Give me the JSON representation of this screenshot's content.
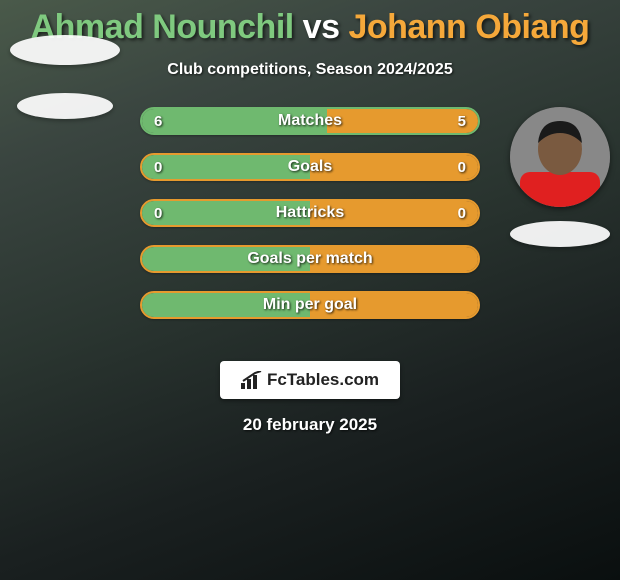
{
  "title": {
    "player1": "Ahmad Nounchil",
    "vs": " vs ",
    "player2": "Johann Obiang",
    "color1": "#7fc97f",
    "color_vs": "#ffffff",
    "color2": "#f5a83a",
    "fontsize": 34
  },
  "subtitle": "Club competitions, Season 2024/2025",
  "colors": {
    "left": "#6fb96f",
    "right": "#e69a2e",
    "bar_bg": "#3a3a3a",
    "text": "#ffffff"
  },
  "bars": [
    {
      "label": "Matches",
      "left": "6",
      "right": "5",
      "left_pct": 55,
      "right_pct": 45,
      "show_vals": true,
      "border": "#6fb96f"
    },
    {
      "label": "Goals",
      "left": "0",
      "right": "0",
      "left_pct": 50,
      "right_pct": 50,
      "show_vals": true,
      "border": "#e69a2e"
    },
    {
      "label": "Hattricks",
      "left": "0",
      "right": "0",
      "left_pct": 50,
      "right_pct": 50,
      "show_vals": true,
      "border": "#e69a2e"
    },
    {
      "label": "Goals per match",
      "left": "",
      "right": "",
      "left_pct": 50,
      "right_pct": 50,
      "show_vals": false,
      "border": "#e69a2e"
    },
    {
      "label": "Min per goal",
      "left": "",
      "right": "",
      "left_pct": 50,
      "right_pct": 50,
      "show_vals": false,
      "border": "#e69a2e"
    }
  ],
  "logo_text": "FcTables.com",
  "date_text": "20 february 2025",
  "player_right": {
    "skin": "#7a5a40",
    "jersey": "#e02020"
  }
}
